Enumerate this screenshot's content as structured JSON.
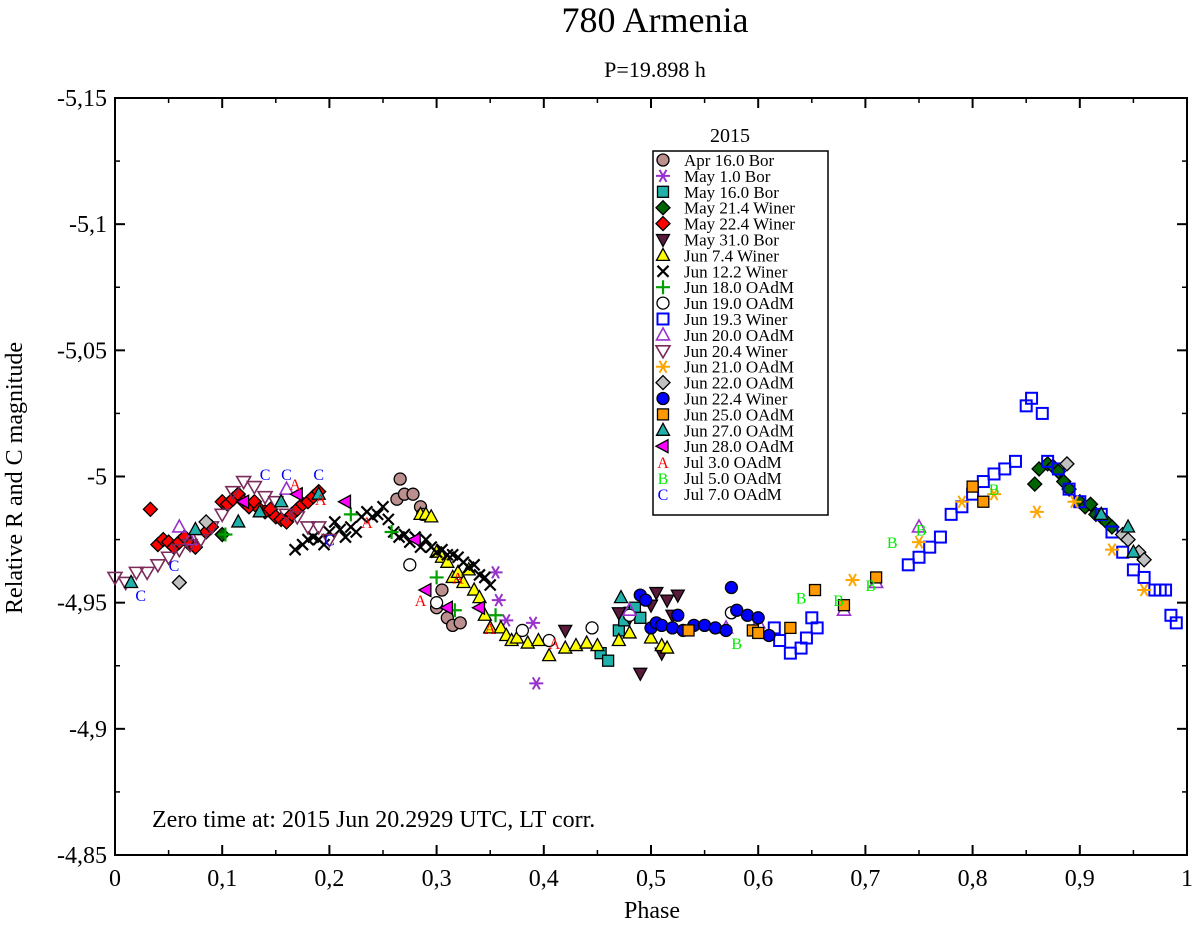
{
  "chart_data": {
    "type": "scatter",
    "title": "780 Armenia",
    "subtitle": "P=19.898 h",
    "xlabel": "Phase",
    "ylabel": "Relative R and C magnitude",
    "xlim": [
      0,
      1
    ],
    "ylim": [
      -4.85,
      -5.15
    ],
    "y_inverted": true,
    "x_ticks": [
      0,
      0.1,
      0.2,
      0.3,
      0.4,
      0.5,
      0.6,
      0.7,
      0.8,
      0.9,
      1
    ],
    "x_tick_labels": [
      "0",
      "0,1",
      "0,2",
      "0,3",
      "0,4",
      "0,5",
      "0,6",
      "0,7",
      "0,8",
      "0,9",
      "1"
    ],
    "y_ticks": [
      -5.15,
      -5.1,
      -5.05,
      -5.0,
      -4.95,
      -4.9,
      -4.85
    ],
    "y_tick_labels": [
      "-5,15",
      "-5,1",
      "-5,05",
      "-5",
      "-4,95",
      "-4,9",
      "-4,85"
    ],
    "annotation": "Zero time at: 2015 Jun 20.2929 UTC, LT corr.",
    "legend_title": "2015",
    "legend_position": "top-center",
    "grid": false,
    "series": [
      {
        "name": "Apr 16.0 Bor",
        "marker": "circle",
        "fill": "#bc8f8f",
        "stroke": "#000000",
        "x": [
          0.266,
          0.263,
          0.27,
          0.278,
          0.285,
          0.287,
          0.3,
          0.305,
          0.31,
          0.315,
          0.322
        ],
        "y": [
          -4.999,
          -4.991,
          -4.993,
          -4.993,
          -4.988,
          -4.985,
          -4.948,
          -4.955,
          -4.944,
          -4.941,
          -4.942
        ]
      },
      {
        "name": "May 1.0 Bor",
        "marker": "asterisk",
        "fill": "#9932cc",
        "stroke": "#9932cc",
        "x": [
          0.355,
          0.358,
          0.365,
          0.39,
          0.393
        ],
        "y": [
          -4.962,
          -4.951,
          -4.943,
          -4.942,
          -4.918
        ]
      },
      {
        "name": "May 16.0 Bor",
        "marker": "square",
        "fill": "#20b2aa",
        "stroke": "#000000",
        "x": [
          0.453,
          0.46,
          0.47,
          0.475,
          0.48,
          0.485,
          0.49
        ],
        "y": [
          -4.93,
          -4.927,
          -4.939,
          -4.943,
          -4.946,
          -4.948,
          -4.944
        ]
      },
      {
        "name": "May 21.4 Winer",
        "marker": "diamond",
        "fill": "#006400",
        "stroke": "#000000",
        "x": [
          0.1,
          0.858,
          0.862,
          0.87,
          0.875,
          0.88,
          0.885,
          0.89,
          0.9,
          0.905,
          0.91,
          0.915,
          0.92,
          0.925,
          0.93
        ],
        "y": [
          -4.977,
          -4.997,
          -5.003,
          -5.005,
          -5.004,
          -5.002,
          -4.998,
          -4.995,
          -4.99,
          -4.988,
          -4.989,
          -4.985,
          -4.984,
          -4.982,
          -4.98
        ]
      },
      {
        "name": "May 22.4 Winer",
        "marker": "diamond",
        "fill": "#ff0000",
        "stroke": "#000000",
        "x": [
          0.033,
          0.04,
          0.045,
          0.05,
          0.055,
          0.06,
          0.065,
          0.07,
          0.075,
          0.085,
          0.09,
          0.1,
          0.105,
          0.11,
          0.115,
          0.12,
          0.125,
          0.13,
          0.135,
          0.14,
          0.145,
          0.15,
          0.155,
          0.16,
          0.165,
          0.17,
          0.175,
          0.18,
          0.185,
          0.19
        ],
        "y": [
          -4.987,
          -4.973,
          -4.975,
          -4.974,
          -4.972,
          -4.974,
          -4.976,
          -4.973,
          -4.972,
          -4.978,
          -4.98,
          -4.99,
          -4.989,
          -4.991,
          -4.993,
          -4.99,
          -4.988,
          -4.99,
          -4.987,
          -4.986,
          -4.987,
          -4.984,
          -4.983,
          -4.982,
          -4.985,
          -4.987,
          -4.989,
          -4.99,
          -4.992,
          -4.994
        ]
      },
      {
        "name": "May 31.0 Bor",
        "marker": "triangle-down",
        "fill": "#5a1a3c",
        "stroke": "#000000",
        "x": [
          0.42,
          0.47,
          0.48,
          0.49,
          0.5,
          0.505,
          0.51,
          0.515,
          0.52,
          0.525
        ],
        "y": [
          -4.939,
          -4.946,
          -4.944,
          -4.922,
          -4.949,
          -4.954,
          -4.93,
          -4.951,
          -4.945,
          -4.953
        ]
      },
      {
        "name": "Jun 7.4 Winer",
        "marker": "triangle-up",
        "fill": "#ffff00",
        "stroke": "#000000",
        "x": [
          0.285,
          0.29,
          0.295,
          0.3,
          0.305,
          0.31,
          0.315,
          0.32,
          0.325,
          0.33,
          0.335,
          0.34,
          0.345,
          0.35,
          0.36,
          0.365,
          0.37,
          0.375,
          0.385,
          0.395,
          0.405,
          0.42,
          0.43,
          0.44,
          0.45,
          0.47,
          0.48,
          0.5,
          0.51,
          0.515
        ],
        "y": [
          -4.985,
          -4.985,
          -4.984,
          -4.97,
          -4.968,
          -4.966,
          -4.96,
          -4.962,
          -4.958,
          -4.963,
          -4.955,
          -4.952,
          -4.945,
          -4.94,
          -4.94,
          -4.937,
          -4.935,
          -4.936,
          -4.934,
          -4.935,
          -4.929,
          -4.932,
          -4.933,
          -4.934,
          -4.933,
          -4.935,
          -4.938,
          -4.936,
          -4.933,
          -4.932
        ]
      },
      {
        "name": "Jun 12.2 Winer",
        "marker": "x",
        "fill": "#000000",
        "stroke": "#000000",
        "x": [
          0.168,
          0.175,
          0.18,
          0.185,
          0.19,
          0.195,
          0.2,
          0.205,
          0.21,
          0.215,
          0.22,
          0.225,
          0.23,
          0.235,
          0.24,
          0.245,
          0.25,
          0.255,
          0.26,
          0.265,
          0.27,
          0.275,
          0.28,
          0.285,
          0.29,
          0.295,
          0.3,
          0.305,
          0.31,
          0.315,
          0.32,
          0.325,
          0.33,
          0.335,
          0.34,
          0.345,
          0.35
        ],
        "y": [
          -4.971,
          -4.973,
          -4.975,
          -4.976,
          -4.975,
          -4.973,
          -4.978,
          -4.982,
          -4.979,
          -4.976,
          -4.98,
          -4.978,
          -4.984,
          -4.986,
          -4.984,
          -4.985,
          -4.988,
          -4.983,
          -4.978,
          -4.976,
          -4.977,
          -4.974,
          -4.976,
          -4.972,
          -4.975,
          -4.972,
          -4.97,
          -4.971,
          -4.969,
          -4.969,
          -4.968,
          -4.966,
          -4.964,
          -4.965,
          -4.961,
          -4.96,
          -4.957
        ]
      },
      {
        "name": "Jun 18.0 OAdM",
        "marker": "plus",
        "fill": "#00a000",
        "stroke": "#00a000",
        "x": [
          0.103,
          0.22,
          0.258,
          0.3,
          0.317,
          0.355
        ],
        "y": [
          -4.977,
          -4.985,
          -4.978,
          -4.96,
          -4.947,
          -4.945
        ]
      },
      {
        "name": "Jun 19.0 OAdM",
        "marker": "circle",
        "fill": "#ffffff",
        "stroke": "#000000",
        "x": [
          0.275,
          0.3,
          0.38,
          0.405,
          0.445,
          0.48,
          0.575
        ],
        "y": [
          -4.965,
          -4.95,
          -4.939,
          -4.935,
          -4.94,
          -4.945,
          -4.946
        ]
      },
      {
        "name": "Jun 19.3 Winer",
        "marker": "square-open",
        "fill": "#ffffff",
        "stroke": "#0000ff",
        "x": [
          0.615,
          0.62,
          0.63,
          0.64,
          0.645,
          0.65,
          0.655,
          0.74,
          0.75,
          0.76,
          0.77,
          0.78,
          0.79,
          0.8,
          0.81,
          0.82,
          0.83,
          0.84,
          0.85,
          0.855,
          0.865,
          0.87,
          0.88,
          0.89,
          0.9,
          0.92,
          0.93,
          0.94,
          0.95,
          0.96,
          0.97,
          0.975,
          0.98,
          0.985,
          0.99
        ],
        "y": [
          -4.94,
          -4.935,
          -4.93,
          -4.932,
          -4.936,
          -4.944,
          -4.94,
          -4.965,
          -4.968,
          -4.972,
          -4.976,
          -4.985,
          -4.988,
          -4.993,
          -4.998,
          -5.001,
          -5.003,
          -5.006,
          -5.028,
          -5.031,
          -5.025,
          -5.006,
          -5.003,
          -4.995,
          -4.99,
          -4.985,
          -4.978,
          -4.97,
          -4.963,
          -4.96,
          -4.955,
          -4.955,
          -4.955,
          -4.945,
          -4.942
        ]
      },
      {
        "name": "Jun 20.0 OAdM",
        "marker": "triangle-up-open",
        "fill": "#ffffff",
        "stroke": "#9932cc",
        "x": [
          0.06,
          0.07,
          0.16,
          0.48,
          0.57,
          0.6,
          0.68,
          0.71,
          0.75
        ],
        "y": [
          -4.98,
          -4.975,
          -4.995,
          -4.947,
          -4.94,
          -4.942,
          -4.947,
          -4.958,
          -4.98
        ]
      },
      {
        "name": "Jun 20.4 Winer",
        "marker": "triangle-down-open",
        "fill": "#ffffff",
        "stroke": "#7b2c5a",
        "x": [
          0.0,
          0.01,
          0.02,
          0.03,
          0.04,
          0.05,
          0.06,
          0.07,
          0.08,
          0.09,
          0.1,
          0.11,
          0.12,
          0.13,
          0.14,
          0.15,
          0.16,
          0.17,
          0.18,
          0.19,
          0.2
        ],
        "y": [
          -4.96,
          -4.958,
          -4.962,
          -4.962,
          -4.965,
          -4.968,
          -4.971,
          -4.973,
          -4.975,
          -4.98,
          -4.985,
          -4.994,
          -4.998,
          -4.996,
          -4.992,
          -4.99,
          -4.985,
          -4.984,
          -4.98,
          -4.98,
          -4.975
        ]
      },
      {
        "name": "Jun 21.0 OAdM",
        "marker": "asterisk",
        "fill": "#ffa500",
        "stroke": "#ffa500",
        "x": [
          0.688,
          0.75,
          0.79,
          0.82,
          0.86,
          0.895,
          0.93,
          0.96
        ],
        "y": [
          -4.959,
          -4.974,
          -4.99,
          -4.993,
          -4.986,
          -4.99,
          -4.971,
          -4.955
        ]
      },
      {
        "name": "Jun 22.0 OAdM",
        "marker": "diamond",
        "fill": "#c0c0c0",
        "stroke": "#000000",
        "x": [
          0.06,
          0.085,
          0.888,
          0.94,
          0.945,
          0.955,
          0.96
        ],
        "y": [
          -4.958,
          -4.982,
          -5.005,
          -4.977,
          -4.975,
          -4.97,
          -4.967
        ]
      },
      {
        "name": "Jun 22.4 Winer",
        "marker": "circle",
        "fill": "#0000ff",
        "stroke": "#000000",
        "x": [
          0.49,
          0.495,
          0.5,
          0.505,
          0.51,
          0.52,
          0.525,
          0.53,
          0.54,
          0.55,
          0.56,
          0.57,
          0.575,
          0.58,
          0.59,
          0.6,
          0.61
        ],
        "y": [
          -4.953,
          -4.951,
          -4.94,
          -4.942,
          -4.941,
          -4.94,
          -4.945,
          -4.939,
          -4.941,
          -4.941,
          -4.94,
          -4.939,
          -4.956,
          -4.947,
          -4.945,
          -4.944,
          -4.937
        ]
      },
      {
        "name": "Jun 25.0 OAdM",
        "marker": "square",
        "fill": "#ff9900",
        "stroke": "#000000",
        "x": [
          0.535,
          0.595,
          0.6,
          0.63,
          0.653,
          0.68,
          0.71,
          0.8,
          0.81
        ],
        "y": [
          -4.939,
          -4.939,
          -4.938,
          -4.94,
          -4.955,
          -4.949,
          -4.96,
          -4.996,
          -4.99
        ]
      },
      {
        "name": "Jun 27.0 OAdM",
        "marker": "triangle-up",
        "fill": "#20b2aa",
        "stroke": "#000000",
        "x": [
          0.015,
          0.075,
          0.115,
          0.135,
          0.155,
          0.19,
          0.472,
          0.92,
          0.945,
          0.95
        ],
        "y": [
          -4.958,
          -4.979,
          -4.982,
          -4.986,
          -4.99,
          -4.993,
          -4.952,
          -4.985,
          -4.98,
          -4.97
        ]
      },
      {
        "name": "Jun 28.0 OAdM",
        "marker": "triangle-left",
        "fill": "#ff00ff",
        "stroke": "#000000",
        "x": [
          0.12,
          0.17,
          0.215,
          0.28,
          0.29,
          0.31,
          0.34
        ],
        "y": [
          -4.99,
          -4.993,
          -4.99,
          -4.975,
          -4.955,
          -4.948,
          -4.948
        ]
      },
      {
        "name": "Jul 3.0 OAdM",
        "marker": "letter-A",
        "fill": "#ff0000",
        "stroke": "#ff0000",
        "x": [
          0.168,
          0.192,
          0.235,
          0.285,
          0.32,
          0.35,
          0.41
        ],
        "y": [
          -4.997,
          -4.991,
          -4.982,
          -4.951,
          -4.96,
          -4.94,
          -4.934
        ]
      },
      {
        "name": "Jul 5.0 OAdM",
        "marker": "letter-B",
        "fill": "#00ee00",
        "stroke": "#00ee00",
        "x": [
          0.58,
          0.64,
          0.675,
          0.705,
          0.725,
          0.752,
          0.82
        ],
        "y": [
          -4.934,
          -4.952,
          -4.951,
          -4.957,
          -4.974,
          -4.979,
          -4.995
        ]
      },
      {
        "name": "Jul 7.0 OAdM",
        "marker": "letter-C",
        "fill": "#0000ff",
        "stroke": "#0000ff",
        "x": [
          0.024,
          0.055,
          0.14,
          0.16,
          0.19,
          0.2
        ],
        "y": [
          -4.953,
          -4.965,
          -5.001,
          -5.001,
          -5.001,
          -4.975
        ]
      }
    ]
  }
}
